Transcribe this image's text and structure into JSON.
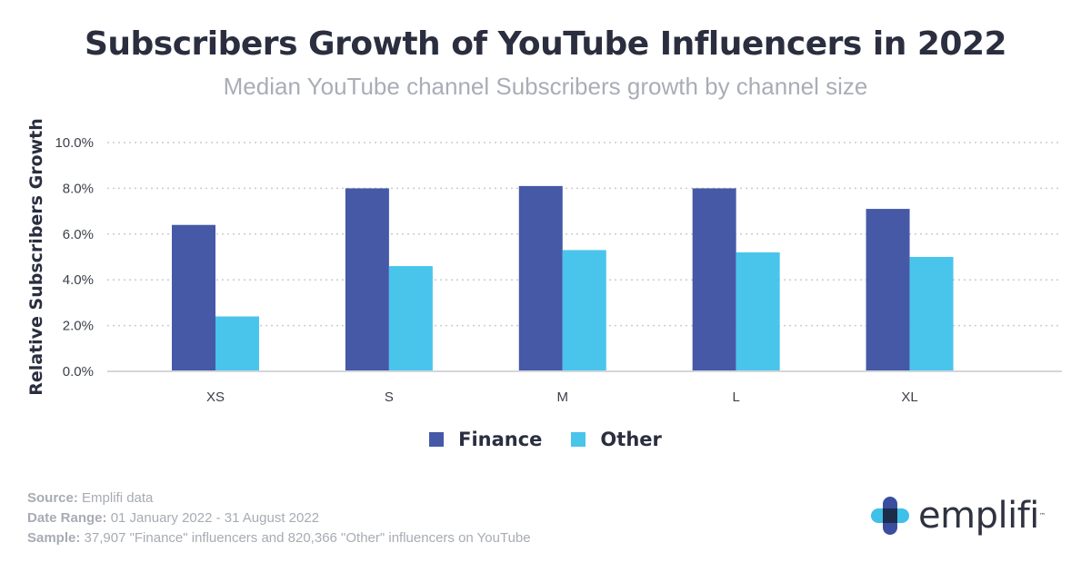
{
  "header": {
    "title": "Subscribers Growth of YouTube Influencers in 2022",
    "subtitle": "Median YouTube channel Subscribers growth by channel size"
  },
  "chart_data": {
    "type": "bar",
    "title": "Subscribers Growth of YouTube Influencers in 2022",
    "subtitle": "Median YouTube channel Subscribers growth by channel size",
    "xlabel": "",
    "ylabel": "Relative Subscribers Growth",
    "categories": [
      "XS",
      "S",
      "M",
      "L",
      "XL"
    ],
    "series": [
      {
        "name": "Finance",
        "color": "#4659a7",
        "values": [
          6.4,
          8.0,
          8.1,
          8.0,
          7.1
        ]
      },
      {
        "name": "Other",
        "color": "#49c5ec",
        "values": [
          2.4,
          4.6,
          5.3,
          5.2,
          5.0
        ]
      }
    ],
    "ylim": [
      0,
      10
    ],
    "yticks": [
      "0.0%",
      "2.0%",
      "4.0%",
      "6.0%",
      "8.0%",
      "10.0%"
    ],
    "grid": true,
    "legend_position": "bottom-center"
  },
  "footer": {
    "source_label": "Source:",
    "source_value": " Emplifi data",
    "date_label": "Date Range:",
    "date_value": " 01 January 2022 - 31 August 2022",
    "sample_label": "Sample:",
    "sample_value": " 37,907 \"Finance\" influencers and 820,366 \"Other\" influencers on YouTube"
  },
  "logo": {
    "text": "emplifi",
    "tm": "™",
    "colors": {
      "blue": "#3a4ea0",
      "cyan": "#3fc0e8",
      "dark": "#1b2d4a"
    }
  }
}
